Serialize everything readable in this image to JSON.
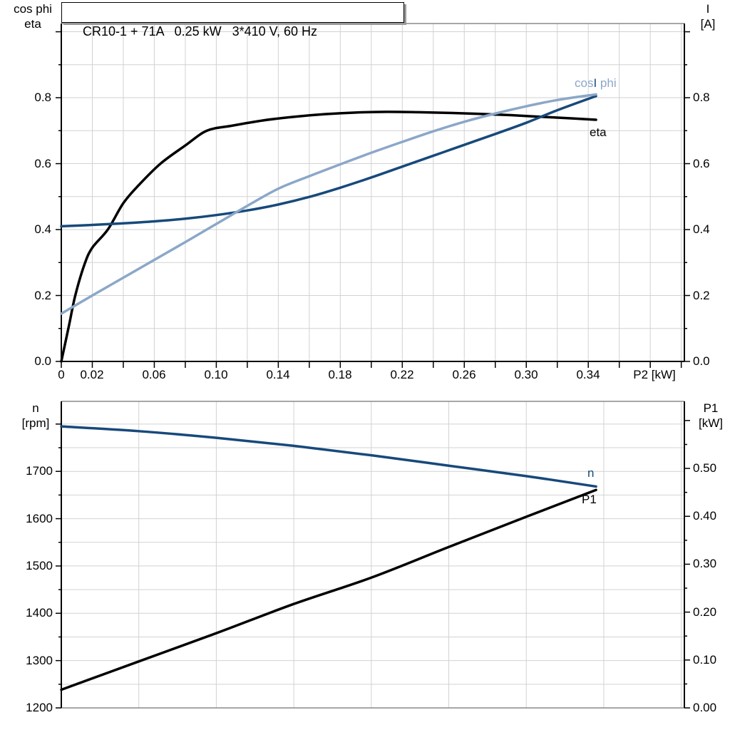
{
  "title": "CR10-1 + 71A   0.25 kW   3*410 V, 60 Hz",
  "colors": {
    "dark_blue": "#17497B",
    "light_blue": "#8BA7C8",
    "black": "#000000",
    "grid": "#D2D2D2",
    "frame": "#8A8A8A"
  },
  "curve_labels": {
    "cos_part": "cos",
    "i_part": "I",
    "phi_part": " phi",
    "eta": "eta",
    "n": "n",
    "p1": "P1"
  },
  "chart_data": [
    {
      "type": "line",
      "title": "CR10-1 + 71A   0.25 kW   3*410 V, 60 Hz",
      "xlabel": "P2 [kW]",
      "grid": {
        "on": true
      },
      "x_axis": {
        "min": 0,
        "max": 0.402,
        "grid_step": 0.02,
        "grid_max": 0.4,
        "tick_step": 0.02,
        "tick_labels": [
          {
            "v": 0,
            "t": "0"
          },
          {
            "v": 0.02,
            "t": "0.02"
          },
          {
            "v": 0.06,
            "t": "0.06"
          },
          {
            "v": 0.1,
            "t": "0.10"
          },
          {
            "v": 0.14,
            "t": "0.14"
          },
          {
            "v": 0.18,
            "t": "0.18"
          },
          {
            "v": 0.22,
            "t": "0.22"
          },
          {
            "v": 0.26,
            "t": "0.26"
          },
          {
            "v": 0.3,
            "t": "0.30"
          },
          {
            "v": 0.34,
            "t": "0.34"
          }
        ]
      },
      "y_left": {
        "label": [
          "cos phi",
          "eta"
        ],
        "min": 0,
        "max": 1.025,
        "grid_step": 0.1,
        "grid_max": 1.0,
        "tick_step": 0.1,
        "major_step": 0.2,
        "tick_max": 1.0,
        "tick_labels": [
          {
            "v": 0.8,
            "t": "0.8"
          },
          {
            "v": 0.6,
            "t": "0.6"
          },
          {
            "v": 0.4,
            "t": "0.4"
          },
          {
            "v": 0.2,
            "t": "0.2"
          },
          {
            "v": 0.0,
            "t": "0.0"
          }
        ]
      },
      "y_right": {
        "label": [
          "I",
          "[A]"
        ],
        "min": 0,
        "max": 1.025,
        "tick_step": 0.1,
        "major_step": 0.2,
        "tick_max": 1.0,
        "tick_labels": [
          {
            "v": 0.8,
            "t": "0.8"
          },
          {
            "v": 0.6,
            "t": "0.6"
          },
          {
            "v": 0.4,
            "t": "0.4"
          },
          {
            "v": 0.2,
            "t": "0.2"
          },
          {
            "v": 0.0,
            "t": "0.0"
          }
        ]
      },
      "series": [
        {
          "name": "eta",
          "color": "black",
          "axis": "left",
          "x": [
            0,
            0.005,
            0.009,
            0.015,
            0.02,
            0.03,
            0.04,
            0.05,
            0.064,
            0.08,
            0.094,
            0.11,
            0.13,
            0.15,
            0.17,
            0.19,
            0.21,
            0.23,
            0.25,
            0.27,
            0.29,
            0.31,
            0.33,
            0.345
          ],
          "y": [
            0,
            0.11,
            0.2,
            0.295,
            0.345,
            0.4,
            0.48,
            0.535,
            0.6,
            0.655,
            0.7,
            0.715,
            0.731,
            0.742,
            0.75,
            0.755,
            0.757,
            0.756,
            0.754,
            0.751,
            0.747,
            0.742,
            0.737,
            0.733
          ]
        },
        {
          "name": "I",
          "color": "dark_blue",
          "axis": "left",
          "x": [
            0,
            0.02,
            0.04,
            0.06,
            0.08,
            0.1,
            0.12,
            0.14,
            0.16,
            0.18,
            0.2,
            0.22,
            0.24,
            0.26,
            0.28,
            0.3,
            0.32,
            0.345
          ],
          "y": [
            0.41,
            0.414,
            0.419,
            0.425,
            0.433,
            0.444,
            0.458,
            0.476,
            0.499,
            0.527,
            0.558,
            0.591,
            0.624,
            0.657,
            0.69,
            0.724,
            0.762,
            0.805
          ]
        },
        {
          "name": "cos phi",
          "color": "light_blue",
          "axis": "left",
          "x": [
            0,
            0.02,
            0.04,
            0.06,
            0.08,
            0.1,
            0.12,
            0.14,
            0.16,
            0.18,
            0.2,
            0.22,
            0.24,
            0.26,
            0.28,
            0.3,
            0.32,
            0.345
          ],
          "y": [
            0.145,
            0.2,
            0.254,
            0.308,
            0.362,
            0.417,
            0.472,
            0.524,
            0.562,
            0.598,
            0.633,
            0.666,
            0.698,
            0.727,
            0.752,
            0.774,
            0.793,
            0.81
          ]
        }
      ]
    },
    {
      "type": "line",
      "xlabel": "",
      "grid": {
        "on": true
      },
      "x_axis": {
        "min": 0,
        "max": 0.402,
        "grid_step": 0.05,
        "grid_max": 0.4,
        "tick_step": null,
        "tick_labels": []
      },
      "y_left": {
        "label": [
          "n",
          "[rpm]"
        ],
        "min": 1200,
        "max": 1848,
        "grid_step": 50,
        "grid_max": 1800,
        "tick_step": 50,
        "major_step": 100,
        "tick_max": 1800,
        "tick_labels": [
          {
            "v": 1700,
            "t": "1700"
          },
          {
            "v": 1600,
            "t": "1600"
          },
          {
            "v": 1500,
            "t": "1500"
          },
          {
            "v": 1400,
            "t": "1400"
          },
          {
            "v": 1300,
            "t": "1300"
          },
          {
            "v": 1200,
            "t": "1200"
          }
        ]
      },
      "y_right": {
        "label": [
          "P1",
          "[kW]"
        ],
        "min": 0,
        "max": 0.64,
        "tick_step": 0.05,
        "major_step": 0.1,
        "tick_max": 0.6,
        "tick_labels": [
          {
            "v": 0.5,
            "t": "0.50"
          },
          {
            "v": 0.4,
            "t": "0.40"
          },
          {
            "v": 0.3,
            "t": "0.30"
          },
          {
            "v": 0.2,
            "t": "0.20"
          },
          {
            "v": 0.1,
            "t": "0.10"
          },
          {
            "v": 0.0,
            "t": "0.00"
          }
        ]
      },
      "series": [
        {
          "name": "n",
          "color": "dark_blue",
          "axis": "left",
          "x": [
            0,
            0.05,
            0.1,
            0.15,
            0.2,
            0.25,
            0.3,
            0.345
          ],
          "y": [
            1795,
            1785,
            1771,
            1754,
            1734,
            1712,
            1690,
            1668
          ]
        },
        {
          "name": "P1",
          "color": "black",
          "axis": "right",
          "x": [
            0,
            0.05,
            0.1,
            0.15,
            0.2,
            0.25,
            0.3,
            0.345
          ],
          "y": [
            0.038,
            0.097,
            0.156,
            0.217,
            0.272,
            0.336,
            0.399,
            0.455
          ]
        }
      ]
    }
  ]
}
